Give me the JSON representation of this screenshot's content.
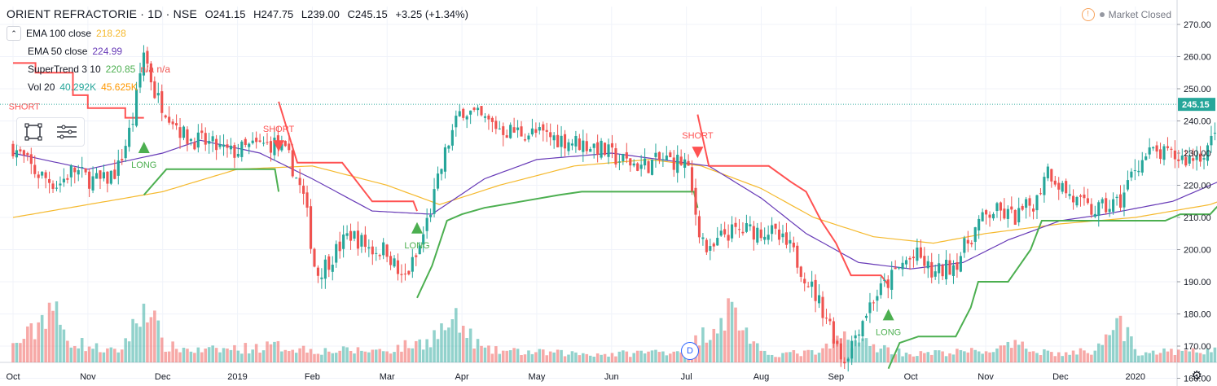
{
  "header": {
    "symbol": "ORIENT REFRACTORIE · 1D · NSE",
    "open_label": "O",
    "open": "241.15",
    "high_label": "H",
    "high": "247.75",
    "low_label": "L",
    "low": "239.00",
    "close_label": "C",
    "close": "245.15",
    "change": "+3.25 (+1.34%)"
  },
  "status": {
    "market": "Market Closed"
  },
  "legend": {
    "ema100": {
      "label": "EMA 100 close",
      "value": "218.28",
      "color": "#f5b92d"
    },
    "ema50": {
      "label": "EMA 50 close",
      "value": "224.99",
      "color": "#673ab7"
    },
    "supertrend": {
      "label": "SuperTrend 3 10",
      "value": "220.85",
      "extra": "n/a n/a",
      "color": "#4caf50"
    },
    "vol": {
      "label": "Vol 20",
      "value1": "40.292K",
      "value2": "45.625K",
      "color1": "#26a69a",
      "color2": "#ff9800"
    }
  },
  "event_marker": "D",
  "chart_data": {
    "type": "candlestick",
    "price_axis_ticks": [
      "270.00",
      "260.00",
      "250.00",
      "240.00",
      "230.00",
      "220.00",
      "210.00",
      "200.00",
      "190.00",
      "180.00",
      "170.00",
      "160.00"
    ],
    "last_price_label": "245.15",
    "ylim": [
      155,
      275
    ],
    "time_axis_labels": [
      "Oct",
      "Nov",
      "Dec",
      "2019",
      "Feb",
      "Mar",
      "Apr",
      "May",
      "Jun",
      "Jul",
      "Aug",
      "Sep",
      "Oct",
      "Nov",
      "Dec",
      "2020"
    ],
    "signals": [
      {
        "text": "SHORT",
        "type": "short",
        "month_index": 0,
        "price": 241
      },
      {
        "text": "LONG",
        "type": "long",
        "month_index": 2,
        "price": 230
      },
      {
        "text": "SHORT",
        "type": "short",
        "month_index": 4,
        "price": 234
      },
      {
        "text": "LONG",
        "type": "long",
        "month_index": 6,
        "price": 205
      },
      {
        "text": "SHORT",
        "type": "short",
        "month_index": 9,
        "price": 232
      },
      {
        "text": "LONG",
        "type": "long",
        "month_index": 11,
        "price": 178
      }
    ],
    "close_anchors": [
      [
        0,
        232
      ],
      [
        0.3,
        224
      ],
      [
        0.6,
        220
      ],
      [
        0.8,
        225
      ],
      [
        1.0,
        222
      ],
      [
        1.2,
        221
      ],
      [
        1.4,
        225
      ],
      [
        1.6,
        240
      ],
      [
        1.75,
        262
      ],
      [
        1.9,
        248
      ],
      [
        2.1,
        242
      ],
      [
        2.3,
        235
      ],
      [
        2.6,
        233
      ],
      [
        2.9,
        230
      ],
      [
        3.2,
        232
      ],
      [
        3.5,
        233
      ],
      [
        3.7,
        228
      ],
      [
        3.9,
        215
      ],
      [
        4.05,
        192
      ],
      [
        4.2,
        196
      ],
      [
        4.5,
        205
      ],
      [
        4.8,
        200
      ],
      [
        5.0,
        200
      ],
      [
        5.2,
        190
      ],
      [
        5.4,
        198
      ],
      [
        5.6,
        214
      ],
      [
        5.8,
        232
      ],
      [
        6.0,
        244
      ],
      [
        6.3,
        240
      ],
      [
        6.6,
        237
      ],
      [
        7.0,
        236
      ],
      [
        7.4,
        234
      ],
      [
        7.8,
        232
      ],
      [
        8.1,
        228
      ],
      [
        8.4,
        226
      ],
      [
        8.7,
        228
      ],
      [
        9.0,
        227
      ],
      [
        9.15,
        208
      ],
      [
        9.3,
        198
      ],
      [
        9.5,
        205
      ],
      [
        9.8,
        206
      ],
      [
        10.1,
        206
      ],
      [
        10.4,
        200
      ],
      [
        10.7,
        187
      ],
      [
        10.9,
        178
      ],
      [
        11.1,
        165
      ],
      [
        11.3,
        176
      ],
      [
        11.5,
        185
      ],
      [
        11.7,
        190
      ],
      [
        11.9,
        196
      ],
      [
        12.1,
        198
      ],
      [
        12.3,
        192
      ],
      [
        12.6,
        196
      ],
      [
        12.9,
        208
      ],
      [
        13.1,
        212
      ],
      [
        13.4,
        210
      ],
      [
        13.7,
        216
      ],
      [
        13.8,
        226
      ],
      [
        14.0,
        220
      ],
      [
        14.2,
        215
      ],
      [
        14.4,
        212
      ],
      [
        14.6,
        213
      ],
      [
        14.8,
        215
      ],
      [
        15.0,
        226
      ],
      [
        15.2,
        230
      ],
      [
        15.5,
        229
      ],
      [
        15.7,
        228
      ],
      [
        15.9,
        230
      ],
      [
        16.1,
        236
      ],
      [
        16.3,
        242
      ],
      [
        16.5,
        245.15
      ]
    ],
    "ema100_anchors": [
      [
        0,
        210
      ],
      [
        1,
        214
      ],
      [
        2,
        218
      ],
      [
        3,
        225
      ],
      [
        4,
        226
      ],
      [
        5,
        220
      ],
      [
        5.7,
        214
      ],
      [
        6.5,
        220
      ],
      [
        7.5,
        226
      ],
      [
        8.5,
        228
      ],
      [
        9.2,
        226
      ],
      [
        10,
        219
      ],
      [
        10.7,
        210
      ],
      [
        11.5,
        204
      ],
      [
        12.3,
        202
      ],
      [
        13,
        205
      ],
      [
        14,
        208
      ],
      [
        15,
        210
      ],
      [
        16,
        214
      ],
      [
        16.5,
        218.3
      ]
    ],
    "ema50_anchors": [
      [
        0,
        230
      ],
      [
        1,
        225
      ],
      [
        2,
        230
      ],
      [
        2.5,
        234
      ],
      [
        3.3,
        230
      ],
      [
        4,
        222
      ],
      [
        4.8,
        212
      ],
      [
        5.6,
        211
      ],
      [
        6.3,
        222
      ],
      [
        7,
        228
      ],
      [
        8,
        230
      ],
      [
        9.3,
        226
      ],
      [
        10,
        216
      ],
      [
        10.6,
        205
      ],
      [
        11.3,
        196
      ],
      [
        12,
        194
      ],
      [
        12.7,
        196
      ],
      [
        13.3,
        203
      ],
      [
        14,
        209
      ],
      [
        14.6,
        211
      ],
      [
        15.5,
        215
      ],
      [
        16.5,
        225
      ]
    ],
    "supertrend_segments": [
      {
        "trend": "down",
        "points": [
          [
            0,
            258
          ],
          [
            0.3,
            258
          ],
          [
            0.3,
            255
          ],
          [
            0.8,
            255
          ],
          [
            0.8,
            248
          ],
          [
            1.0,
            248
          ],
          [
            1.0,
            244
          ],
          [
            1.5,
            244
          ],
          [
            1.5,
            241
          ],
          [
            1.75,
            241
          ]
        ]
      },
      {
        "trend": "up",
        "points": [
          [
            1.75,
            217
          ],
          [
            2.05,
            225
          ],
          [
            3.5,
            225
          ],
          [
            3.55,
            218
          ]
        ]
      },
      {
        "trend": "down",
        "points": [
          [
            3.55,
            246
          ],
          [
            3.8,
            227
          ],
          [
            4.4,
            227
          ],
          [
            4.8,
            215
          ],
          [
            5.35,
            215
          ],
          [
            5.4,
            212
          ]
        ]
      },
      {
        "trend": "up",
        "points": [
          [
            5.4,
            185
          ],
          [
            5.6,
            195
          ],
          [
            5.8,
            209
          ],
          [
            6.0,
            211
          ],
          [
            6.3,
            213
          ],
          [
            6.8,
            215
          ],
          [
            7.3,
            217
          ],
          [
            7.6,
            218
          ],
          [
            9.1,
            218
          ],
          [
            9.15,
            213
          ]
        ]
      },
      {
        "trend": "down",
        "points": [
          [
            9.15,
            242
          ],
          [
            9.3,
            226
          ],
          [
            10.1,
            226
          ],
          [
            10.4,
            221
          ],
          [
            10.6,
            218
          ],
          [
            10.8,
            209
          ],
          [
            11.0,
            202
          ],
          [
            11.2,
            192
          ],
          [
            11.6,
            192
          ],
          [
            11.7,
            189
          ]
        ]
      },
      {
        "trend": "up",
        "points": [
          [
            11.7,
            163
          ],
          [
            11.85,
            171
          ],
          [
            12.1,
            173
          ],
          [
            12.6,
            173
          ],
          [
            12.8,
            182
          ],
          [
            12.9,
            190
          ],
          [
            13.3,
            190
          ],
          [
            13.45,
            195
          ],
          [
            13.6,
            200
          ],
          [
            13.7,
            206
          ],
          [
            13.75,
            209
          ],
          [
            15.0,
            209
          ],
          [
            15.4,
            209
          ],
          [
            15.6,
            211
          ],
          [
            16.0,
            211
          ],
          [
            16.2,
            216
          ],
          [
            16.5,
            221
          ]
        ]
      }
    ],
    "volume_anchors": [
      [
        0,
        20
      ],
      [
        0.3,
        40
      ],
      [
        0.5,
        75
      ],
      [
        0.7,
        30
      ],
      [
        1.0,
        20
      ],
      [
        1.4,
        12
      ],
      [
        1.65,
        48
      ],
      [
        1.8,
        80
      ],
      [
        2.0,
        20
      ],
      [
        2.5,
        14
      ],
      [
        3.5,
        20
      ],
      [
        4.2,
        14
      ],
      [
        5.0,
        15
      ],
      [
        5.5,
        25
      ],
      [
        5.9,
        50
      ],
      [
        6.3,
        15
      ],
      [
        7,
        12
      ],
      [
        8,
        10
      ],
      [
        9,
        15
      ],
      [
        9.6,
        66
      ],
      [
        10,
        10
      ],
      [
        10.8,
        12
      ],
      [
        11.1,
        32
      ],
      [
        11.5,
        20
      ],
      [
        12,
        10
      ],
      [
        13,
        14
      ],
      [
        13.4,
        20
      ],
      [
        14,
        10
      ],
      [
        14.5,
        15
      ],
      [
        14.7,
        66
      ],
      [
        15,
        14
      ],
      [
        15.5,
        12
      ],
      [
        16,
        14
      ],
      [
        16.5,
        13
      ]
    ]
  }
}
